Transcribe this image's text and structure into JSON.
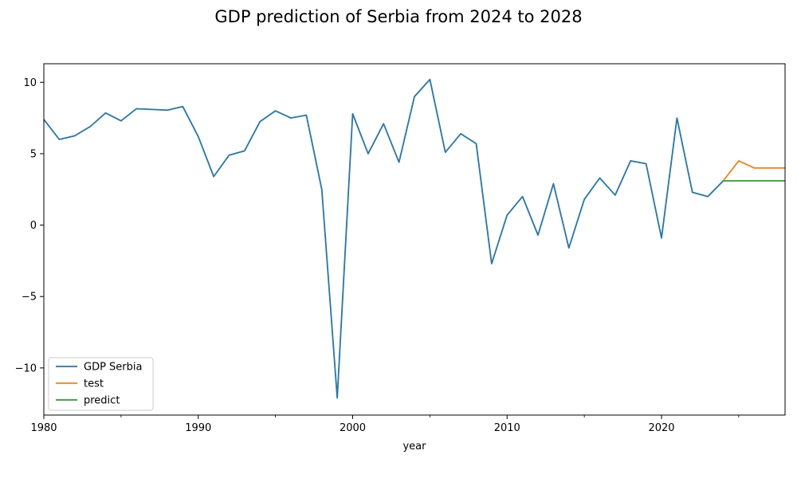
{
  "chart_data": {
    "type": "line",
    "title": "GDP prediction of Serbia from 2024 to 2028",
    "xlabel": "year",
    "ylabel": "",
    "xlim": [
      1980,
      2028
    ],
    "ylim": [
      -13.3,
      11.3
    ],
    "x_ticks": [
      1980,
      1990,
      2000,
      2010,
      2020
    ],
    "x_tick_labels": [
      "1980",
      "1990",
      "2000",
      "2010",
      "2020"
    ],
    "y_ticks": [
      -10,
      -5,
      0,
      5,
      10
    ],
    "y_tick_labels": [
      "−10",
      "−5",
      "0",
      "5",
      "10"
    ],
    "grid": false,
    "legend_position": "lower-left",
    "series": [
      {
        "name": "GDP Serbia",
        "color": "#1f77b4",
        "x": [
          1980,
          1981,
          1982,
          1983,
          1984,
          1985,
          1986,
          1987,
          1988,
          1989,
          1990,
          1991,
          1992,
          1993,
          1994,
          1995,
          1996,
          1997,
          1998,
          1999,
          2000,
          2001,
          2002,
          2003,
          2004,
          2005,
          2006,
          2007,
          2008,
          2009,
          2010,
          2011,
          2012,
          2013,
          2014,
          2015,
          2016,
          2017,
          2018,
          2019,
          2020,
          2021,
          2022,
          2023,
          2024
        ],
        "values": [
          7.4,
          6.0,
          6.25,
          6.9,
          7.85,
          7.3,
          8.15,
          8.1,
          8.05,
          8.3,
          6.2,
          3.4,
          4.9,
          5.2,
          7.25,
          8.0,
          7.5,
          7.7,
          2.5,
          -12.1,
          7.8,
          5.0,
          7.1,
          4.4,
          9.0,
          10.2,
          5.1,
          6.4,
          5.7,
          -2.7,
          0.7,
          2.0,
          -0.7,
          2.9,
          -1.6,
          1.8,
          3.3,
          2.1,
          4.5,
          4.3,
          -0.9,
          7.5,
          2.3,
          2.0,
          3.1
        ]
      },
      {
        "name": "test",
        "color": "#ff7f0e",
        "x": [
          2024,
          2025,
          2026,
          2027,
          2028
        ],
        "values": [
          3.1,
          4.5,
          4.0,
          4.0,
          4.0
        ]
      },
      {
        "name": "predict",
        "color": "#2ca02c",
        "x": [
          2024,
          2025,
          2026,
          2027,
          2028
        ],
        "values": [
          3.1,
          3.1,
          3.1,
          3.1,
          3.1
        ]
      }
    ]
  }
}
